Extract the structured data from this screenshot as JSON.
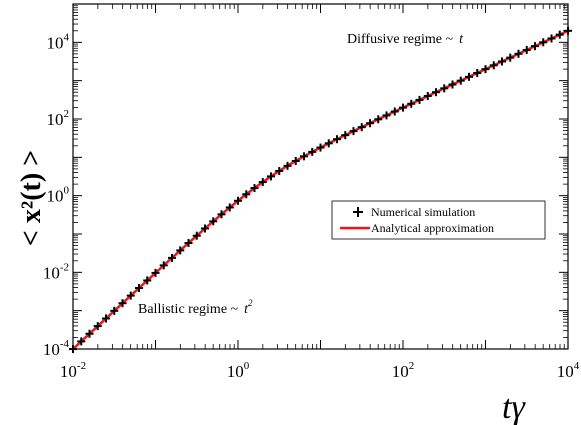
{
  "chart_data": {
    "type": "line",
    "title": "",
    "xlabel": "tγ",
    "ylabel": "< x²(t) >",
    "xscale": "log",
    "yscale": "log",
    "xlim": [
      0.01,
      10000
    ],
    "ylim": [
      0.0001,
      100000
    ],
    "grid": false,
    "legend_position": "center-right",
    "x_ticks": [
      {
        "base": "10",
        "exp": "-2"
      },
      {
        "base": "10",
        "exp": "0"
      },
      {
        "base": "10",
        "exp": "2"
      },
      {
        "base": "10",
        "exp": "4"
      }
    ],
    "y_ticks": [
      {
        "base": "10",
        "exp": "-4"
      },
      {
        "base": "10",
        "exp": "-2"
      },
      {
        "base": "10",
        "exp": "0"
      },
      {
        "base": "10",
        "exp": "2"
      },
      {
        "base": "10",
        "exp": "4"
      }
    ],
    "annotations": {
      "diffusive": {
        "text": "Diffusive regime ~",
        "var": "t",
        "sup": ""
      },
      "ballistic": {
        "text": "Ballistic regime ~",
        "var": "t",
        "sup": "2"
      }
    },
    "series": [
      {
        "name": "Numerical simulation",
        "style": "markers",
        "marker": "plus",
        "color": "#000000",
        "model": "2*(x - 1 + exp(-x))",
        "x_range": [
          0.01,
          10000
        ],
        "points_per_decade": 10
      },
      {
        "name": "Analytical approximation",
        "style": "line",
        "color": "#e41a1c",
        "model": "2*(x - 1 + exp(-x))",
        "x_range": [
          0.01,
          10000
        ]
      }
    ]
  }
}
